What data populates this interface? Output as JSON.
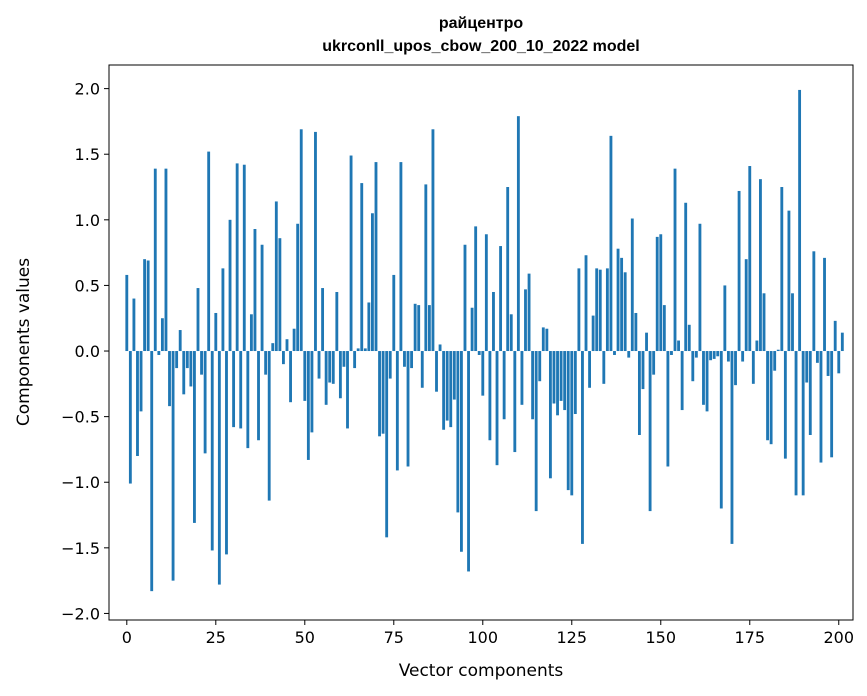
{
  "chart_data": {
    "type": "bar",
    "title_line1": "райцентро",
    "title_line2": "ukrconll_upos_cbow_200_10_2022 model",
    "xlabel": "Vector components",
    "ylabel": "Components values",
    "xlim": [
      -5,
      204
    ],
    "ylim": [
      -2.05,
      2.18
    ],
    "xticks": [
      0,
      25,
      50,
      75,
      100,
      125,
      150,
      175,
      200
    ],
    "xtick_labels": [
      "0",
      "25",
      "50",
      "75",
      "100",
      "125",
      "150",
      "175",
      "200"
    ],
    "yticks": [
      -2.0,
      -1.5,
      -1.0,
      -0.5,
      0.0,
      0.5,
      1.0,
      1.5,
      2.0
    ],
    "ytick_labels": [
      "−2.0",
      "−1.5",
      "−1.0",
      "−0.5",
      "0.0",
      "0.5",
      "1.0",
      "1.5",
      "2.0"
    ],
    "bar_color": "#1f77b4",
    "values": [
      0.58,
      -1.01,
      0.4,
      -0.8,
      -0.46,
      0.7,
      0.69,
      -1.83,
      1.39,
      -0.03,
      0.25,
      1.39,
      -0.42,
      -1.75,
      -0.13,
      0.16,
      -0.33,
      -0.13,
      -0.27,
      -1.31,
      0.48,
      -0.18,
      -0.78,
      1.52,
      -1.52,
      0.29,
      -1.78,
      0.63,
      -1.55,
      1.0,
      -0.58,
      1.43,
      -0.59,
      1.42,
      -0.74,
      0.28,
      0.93,
      -0.68,
      0.81,
      -0.18,
      -1.14,
      0.06,
      1.14,
      0.86,
      -0.1,
      0.09,
      -0.39,
      0.17,
      0.97,
      1.69,
      -0.38,
      -0.83,
      -0.62,
      1.67,
      -0.21,
      0.48,
      -0.41,
      -0.24,
      -0.25,
      0.45,
      -0.36,
      -0.12,
      -0.59,
      1.49,
      -0.13,
      0.02,
      1.28,
      0.02,
      0.37,
      1.05,
      1.44,
      -0.65,
      -0.63,
      -1.42,
      -0.21,
      0.58,
      -0.91,
      1.44,
      -0.12,
      -0.88,
      -0.13,
      0.36,
      0.35,
      -0.28,
      1.27,
      0.35,
      1.69,
      -0.31,
      0.05,
      -0.6,
      -0.53,
      -0.58,
      -0.37,
      -1.23,
      -1.53,
      0.81,
      -1.68,
      0.33,
      0.95,
      -0.03,
      -0.34,
      0.89,
      -0.68,
      0.45,
      -0.87,
      0.8,
      -0.52,
      1.25,
      0.28,
      -0.77,
      1.79,
      -0.41,
      0.47,
      0.59,
      -0.52,
      -1.22,
      -0.23,
      0.18,
      0.17,
      -0.97,
      -0.4,
      -0.49,
      -0.38,
      -0.45,
      -1.06,
      -1.1,
      -0.48,
      0.63,
      -1.47,
      0.73,
      -0.28,
      0.27,
      0.63,
      0.62,
      -0.25,
      0.63,
      1.64,
      -0.03,
      0.78,
      0.71,
      0.6,
      -0.05,
      1.01,
      0.29,
      -0.64,
      -0.29,
      0.14,
      -1.22,
      -0.18,
      0.87,
      0.89,
      0.35,
      -0.88,
      -0.03,
      1.39,
      0.08,
      -0.45,
      1.13,
      0.2,
      -0.23,
      -0.05,
      0.97,
      -0.41,
      -0.46,
      -0.07,
      -0.06,
      -0.04,
      -1.2,
      0.5,
      -0.08,
      -1.47,
      -0.26,
      1.22,
      -0.08,
      0.7,
      1.41,
      -0.25,
      0.08,
      1.31,
      0.44,
      -0.68,
      -0.71,
      -0.15,
      0.01,
      1.25,
      -0.82,
      1.07,
      0.44,
      -1.1,
      1.99,
      -1.1,
      -0.24,
      -0.64,
      0.76,
      -0.09,
      -0.85,
      0.71,
      -0.19,
      -0.81,
      0.23,
      -0.17,
      0.14
    ]
  }
}
